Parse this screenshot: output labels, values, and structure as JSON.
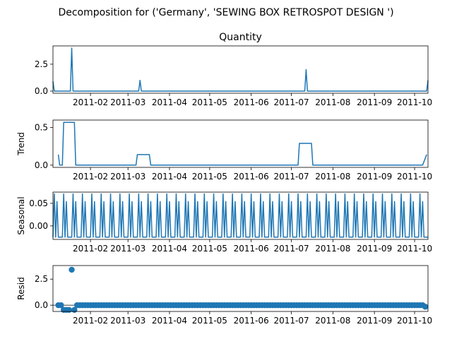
{
  "figure": {
    "suptitle": "Decomposition for ('Germany', 'SEWING BOX RETROSPOT DESIGN ')"
  },
  "colors": {
    "series": "#1f77b4",
    "axes": "#000000",
    "background": "#ffffff"
  },
  "chart_data": [
    {
      "type": "line",
      "title": "Quantity",
      "ylabel": "",
      "x_range": [
        "2011-01-04",
        "2011-10-11"
      ],
      "ylim": [
        -0.2,
        4.2
      ],
      "yticks": [
        "0.0",
        "2.5"
      ],
      "xticks": [
        "2011-02",
        "2011-03",
        "2011-04",
        "2011-05",
        "2011-06",
        "2011-07",
        "2011-08",
        "2011-09",
        "2011-10"
      ],
      "baseline": 0,
      "points": [
        [
          "2011-01-04",
          0.9
        ],
        [
          "2011-01-05",
          0
        ],
        [
          "2011-01-17",
          0
        ],
        [
          "2011-01-18",
          4
        ],
        [
          "2011-01-19",
          0
        ],
        [
          "2011-03-09",
          0
        ],
        [
          "2011-03-10",
          1
        ],
        [
          "2011-03-11",
          0
        ],
        [
          "2011-07-11",
          0
        ],
        [
          "2011-07-12",
          2
        ],
        [
          "2011-07-13",
          0
        ],
        [
          "2011-10-10",
          0
        ],
        [
          "2011-10-11",
          1
        ]
      ]
    },
    {
      "type": "line",
      "title": "",
      "ylabel": "Trend",
      "x_range": [
        "2011-01-04",
        "2011-10-11"
      ],
      "ylim": [
        -0.03,
        0.6
      ],
      "yticks": [
        "0.0",
        "0.5"
      ],
      "xticks": [
        "2011-02",
        "2011-03",
        "2011-04",
        "2011-05",
        "2011-06",
        "2011-07",
        "2011-08",
        "2011-09",
        "2011-10"
      ],
      "points": [
        [
          "2011-01-08",
          0.14
        ],
        [
          "2011-01-09",
          0
        ],
        [
          "2011-01-11",
          0
        ],
        [
          "2011-01-12",
          0.57
        ],
        [
          "2011-01-20",
          0.57
        ],
        [
          "2011-01-21",
          0
        ],
        [
          "2011-03-07",
          0
        ],
        [
          "2011-03-08",
          0.14
        ],
        [
          "2011-03-17",
          0.14
        ],
        [
          "2011-03-18",
          0
        ],
        [
          "2011-07-06",
          0
        ],
        [
          "2011-07-07",
          0.29
        ],
        [
          "2011-07-16",
          0.29
        ],
        [
          "2011-07-17",
          0
        ],
        [
          "2011-10-07",
          0
        ],
        [
          "2011-10-10",
          0.14
        ]
      ]
    },
    {
      "type": "line",
      "title": "",
      "ylabel": "Seasonal",
      "x_range": [
        "2011-01-04",
        "2011-10-11"
      ],
      "ylim": [
        -0.03,
        0.075
      ],
      "yticks": [
        "0.00",
        "0.05"
      ],
      "xticks": [
        "2011-02",
        "2011-03",
        "2011-04",
        "2011-05",
        "2011-06",
        "2011-07",
        "2011-08",
        "2011-09",
        "2011-10"
      ],
      "period_days": 7,
      "pattern": [
        -0.025,
        0.071,
        -0.025,
        0.054,
        -0.025,
        -0.025,
        -0.025
      ]
    },
    {
      "type": "scatter",
      "title": "",
      "ylabel": "Resid",
      "x_range": [
        "2011-01-04",
        "2011-10-11"
      ],
      "ylim": [
        -0.6,
        3.8
      ],
      "yticks": [
        "0.0",
        "2.5"
      ],
      "xticks": [
        "2011-02",
        "2011-03",
        "2011-04",
        "2011-05",
        "2011-06",
        "2011-07",
        "2011-08",
        "2011-09",
        "2011-10"
      ],
      "baseline": 0,
      "default_value": 0,
      "x_start": "2011-01-08",
      "x_end": "2011-10-09",
      "step_days": 2,
      "overrides": [
        [
          "2011-01-12",
          -0.45
        ],
        [
          "2011-01-14",
          -0.45
        ],
        [
          "2011-01-16",
          -0.45
        ],
        [
          "2011-01-18",
          3.4
        ],
        [
          "2011-01-20",
          -0.45
        ],
        [
          "2011-03-06",
          -0.15
        ],
        [
          "2011-03-08",
          -0.15
        ],
        [
          "2011-03-10",
          0.85
        ],
        [
          "2011-03-12",
          -0.15
        ],
        [
          "2011-07-06",
          -0.28
        ],
        [
          "2011-07-08",
          -0.28
        ],
        [
          "2011-07-12",
          1.72
        ],
        [
          "2011-07-14",
          -0.28
        ],
        [
          "2011-07-16",
          -0.28
        ],
        [
          "2011-10-09",
          -0.15
        ]
      ]
    }
  ]
}
